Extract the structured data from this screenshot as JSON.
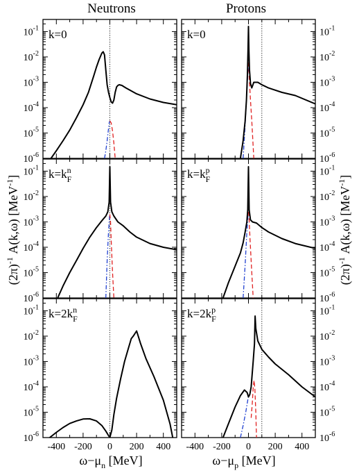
{
  "chart_data": {
    "type": "line",
    "column_titles": [
      "Neutrons",
      "Protons"
    ],
    "ylabel_left": "(2π)^-1 A(k,ω) [MeV^-1]",
    "ylabel_right": "(2π)^-1 A(k,ω) [MeV^-1]",
    "xlabels": [
      "ω−μn [MeV]",
      "ω−μp [MeV]"
    ],
    "xlim": [
      -500,
      500
    ],
    "ylim": [
      1e-06,
      0.3
    ],
    "yscale": "log",
    "xticks": [
      -400,
      -200,
      0,
      200,
      400
    ],
    "xtick_labels": [
      "-400",
      "-200",
      "0",
      "200",
      "400"
    ],
    "ytick_exponents": [
      -6,
      -5,
      -4,
      -3,
      -2,
      -1
    ],
    "ytick_labels": [
      "10-6",
      "10-5",
      "10-4",
      "10-3",
      "10-2",
      "10-1"
    ],
    "series_styles": [
      {
        "key": "total",
        "color": "#000000",
        "style": "solid"
      },
      {
        "key": "hole",
        "color": "#1f3fd0",
        "style": "dash-dot"
      },
      {
        "key": "particle",
        "color": "#e02020",
        "style": "dashed"
      }
    ],
    "panels": [
      {
        "label": "k=0",
        "column": 0,
        "row": 0,
        "reference_line_x": 0,
        "total": [
          [
            -440,
            1e-06
          ],
          [
            -400,
            2e-06
          ],
          [
            -350,
            5e-06
          ],
          [
            -300,
            1.3e-05
          ],
          [
            -250,
            4e-05
          ],
          [
            -200,
            0.00013
          ],
          [
            -160,
            0.0004
          ],
          [
            -120,
            0.0018
          ],
          [
            -100,
            0.004
          ],
          [
            -80,
            0.008
          ],
          [
            -60,
            0.014
          ],
          [
            -50,
            0.016
          ],
          [
            -40,
            0.012
          ],
          [
            -30,
            0.003
          ],
          [
            -20,
            0.0008
          ],
          [
            -10,
            0.0004
          ],
          [
            0,
            0.00025
          ],
          [
            10,
            0.00017
          ],
          [
            20,
            0.00015
          ],
          [
            30,
            0.0002
          ],
          [
            40,
            0.0004
          ],
          [
            50,
            0.00065
          ],
          [
            60,
            0.00075
          ],
          [
            70,
            0.0008
          ],
          [
            90,
            0.00075
          ],
          [
            120,
            0.0006
          ],
          [
            200,
            0.00035
          ],
          [
            300,
            0.00022
          ],
          [
            400,
            0.00016
          ],
          [
            500,
            0.00013
          ]
        ],
        "hole": [
          [
            -40,
            1e-06
          ],
          [
            -30,
            2e-06
          ],
          [
            -20,
            5e-06
          ],
          [
            -10,
            1.5e-05
          ],
          [
            -5,
            2.5e-05
          ],
          [
            0,
            3e-05
          ]
        ],
        "particle": [
          [
            0,
            3e-05
          ],
          [
            10,
            2.5e-05
          ],
          [
            20,
            1.2e-05
          ],
          [
            30,
            4e-06
          ],
          [
            40,
            1e-06
          ]
        ]
      },
      {
        "label": "k=0",
        "column": 1,
        "row": 0,
        "reference_line_x": 100,
        "total": [
          [
            -60,
            1e-06
          ],
          [
            -40,
            5e-06
          ],
          [
            -25,
            3e-05
          ],
          [
            -15,
            0.0002
          ],
          [
            -8,
            0.002
          ],
          [
            -3,
            0.02
          ],
          [
            0,
            0.16
          ],
          [
            3,
            0.02
          ],
          [
            8,
            0.003
          ],
          [
            15,
            0.0009
          ],
          [
            25,
            0.0006
          ],
          [
            40,
            0.001
          ],
          [
            70,
            0.001
          ],
          [
            100,
            0.0008
          ],
          [
            150,
            0.0006
          ],
          [
            250,
            0.0004
          ],
          [
            350,
            0.0003
          ],
          [
            500,
            0.00014
          ]
        ],
        "hole": [
          [
            -40,
            1e-06
          ],
          [
            -25,
            2e-05
          ],
          [
            -15,
            0.0002
          ],
          [
            -5,
            0.002
          ],
          [
            0,
            0.006
          ]
        ],
        "particle": [
          [
            0,
            0.006
          ],
          [
            8,
            0.001
          ],
          [
            15,
            0.0002
          ],
          [
            25,
            3e-05
          ],
          [
            40,
            1e-06
          ]
        ]
      },
      {
        "label": "k=k^n_F",
        "column": 0,
        "row": 1,
        "reference_line_x": 0,
        "total": [
          [
            -390,
            1e-06
          ],
          [
            -350,
            3e-06
          ],
          [
            -300,
            1e-05
          ],
          [
            -250,
            3e-05
          ],
          [
            -200,
            9e-05
          ],
          [
            -150,
            0.00025
          ],
          [
            -100,
            0.0006
          ],
          [
            -60,
            0.0011
          ],
          [
            -30,
            0.0017
          ],
          [
            -15,
            0.0025
          ],
          [
            -5,
            0.006
          ],
          [
            0,
            0.15
          ],
          [
            5,
            0.006
          ],
          [
            15,
            0.0025
          ],
          [
            30,
            0.0017
          ],
          [
            60,
            0.001
          ],
          [
            100,
            0.0007
          ],
          [
            150,
            0.0004
          ],
          [
            200,
            0.00025
          ],
          [
            300,
            0.00014
          ],
          [
            400,
            0.0001
          ],
          [
            500,
            8e-05
          ]
        ],
        "hole": [
          [
            -30,
            1e-06
          ],
          [
            -20,
            3e-05
          ],
          [
            -10,
            0.0004
          ],
          [
            -3,
            0.0015
          ],
          [
            0,
            0.002
          ]
        ],
        "particle": [
          [
            0,
            0.002
          ],
          [
            5,
            0.001
          ],
          [
            10,
            0.0002
          ],
          [
            20,
            1e-05
          ],
          [
            30,
            1e-06
          ]
        ]
      },
      {
        "label": "k=k^p_F",
        "column": 1,
        "row": 1,
        "reference_line_x": 100,
        "total": [
          [
            -190,
            1e-06
          ],
          [
            -150,
            4e-06
          ],
          [
            -100,
            1.8e-05
          ],
          [
            -60,
            6e-05
          ],
          [
            -40,
            0.00015
          ],
          [
            -25,
            0.0004
          ],
          [
            -12,
            0.001
          ],
          [
            -5,
            0.003
          ],
          [
            0,
            0.15
          ],
          [
            5,
            0.003
          ],
          [
            15,
            0.0012
          ],
          [
            30,
            0.001
          ],
          [
            60,
            0.0009
          ],
          [
            100,
            0.0006
          ],
          [
            150,
            0.0004
          ],
          [
            250,
            0.00022
          ],
          [
            350,
            0.00014
          ],
          [
            500,
            9e-05
          ]
        ],
        "hole": [
          [
            -40,
            1e-06
          ],
          [
            -25,
            2e-05
          ],
          [
            -12,
            0.0004
          ],
          [
            -3,
            0.0018
          ],
          [
            0,
            0.0025
          ]
        ],
        "particle": [
          [
            0,
            0.0025
          ],
          [
            5,
            0.0012
          ],
          [
            12,
            0.0002
          ],
          [
            22,
            2e-05
          ],
          [
            35,
            1e-06
          ]
        ]
      },
      {
        "label": "k=2k^n_F",
        "column": 0,
        "row": 2,
        "reference_line_x": 0,
        "total": [
          [
            -500,
            7e-07
          ],
          [
            -450,
            1e-06
          ],
          [
            -400,
            1.6e-06
          ],
          [
            -350,
            2.5e-06
          ],
          [
            -300,
            3.6e-06
          ],
          [
            -250,
            4.5e-06
          ],
          [
            -200,
            5.4e-06
          ],
          [
            -150,
            5.5e-06
          ],
          [
            -100,
            4.5e-06
          ],
          [
            -60,
            3e-06
          ],
          [
            -30,
            1.8e-06
          ],
          [
            -10,
            1.2e-06
          ],
          [
            0,
            1e-06
          ],
          [
            15,
            2e-06
          ],
          [
            30,
            8e-06
          ],
          [
            50,
            3.5e-05
          ],
          [
            80,
            0.0002
          ],
          [
            110,
            0.001
          ],
          [
            140,
            0.0035
          ],
          [
            160,
            0.008
          ],
          [
            175,
            0.01
          ],
          [
            185,
            0.012
          ],
          [
            200,
            0.016
          ],
          [
            210,
            0.011
          ],
          [
            230,
            0.005
          ],
          [
            270,
            0.0013
          ],
          [
            330,
            0.00025
          ],
          [
            400,
            3e-05
          ],
          [
            450,
            3.5e-06
          ],
          [
            470,
            1e-06
          ]
        ],
        "hole": [],
        "particle": []
      },
      {
        "label": "k=2k^p_F",
        "column": 1,
        "row": 2,
        "reference_line_x": 100,
        "total": [
          [
            -190,
            1e-06
          ],
          [
            -150,
            3.5e-06
          ],
          [
            -100,
            1.6e-05
          ],
          [
            -60,
            4.5e-05
          ],
          [
            -30,
            7.5e-05
          ],
          [
            -10,
            6e-05
          ],
          [
            0,
            4e-05
          ],
          [
            10,
            5e-05
          ],
          [
            20,
            0.0001
          ],
          [
            35,
            0.001
          ],
          [
            45,
            0.005
          ],
          [
            50,
            0.062
          ],
          [
            55,
            0.02
          ],
          [
            70,
            0.0065
          ],
          [
            100,
            0.003
          ],
          [
            150,
            0.0015
          ],
          [
            200,
            0.0008
          ],
          [
            300,
            0.0003
          ],
          [
            400,
            0.0001
          ],
          [
            500,
            4e-05
          ]
        ],
        "hole": [
          [
            -60,
            1e-06
          ],
          [
            -40,
            3e-06
          ],
          [
            -20,
            1e-05
          ],
          [
            -5,
            3e-05
          ],
          [
            0,
            4e-05
          ]
        ],
        "particle": [
          [
            20,
            6e-06
          ],
          [
            28,
            2e-05
          ],
          [
            36,
            0.0001
          ],
          [
            42,
            0.00018
          ],
          [
            48,
            8e-05
          ],
          [
            55,
            1e-05
          ],
          [
            60,
            1e-06
          ]
        ]
      }
    ]
  }
}
